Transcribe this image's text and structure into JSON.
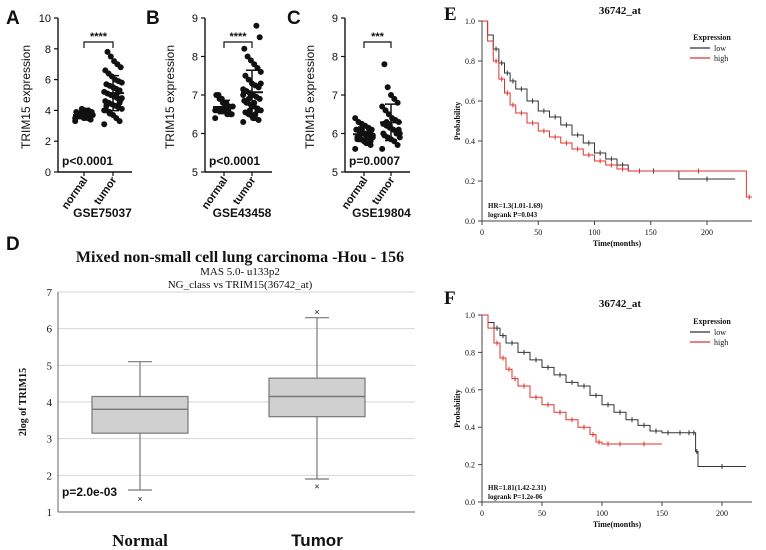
{
  "chart_data": [
    {
      "panel": "A",
      "type": "scatter",
      "title": "GSE75037",
      "ylabel": "TRIM15 expression",
      "categories": [
        "normal",
        "tumor"
      ],
      "ylim": [
        0,
        10
      ],
      "yticks": [
        0,
        2,
        4,
        6,
        8,
        10
      ],
      "significance": "****",
      "pvalue_text": "p<0.0001",
      "series": [
        {
          "values": [
            3.3,
            3.4,
            3.5,
            3.5,
            3.6,
            3.6,
            3.7,
            3.7,
            3.7,
            3.8,
            3.8,
            3.9,
            3.9,
            4.0,
            4.0,
            4.1,
            3.6,
            3.5,
            3.7,
            3.8
          ]
        },
        {
          "values": [
            3.1,
            3.3,
            3.5,
            3.7,
            3.9,
            4.0,
            4.1,
            4.2,
            4.3,
            4.4,
            4.5,
            4.6,
            4.7,
            4.8,
            4.9,
            5.0,
            5.1,
            5.2,
            5.3,
            5.4,
            5.5,
            5.6,
            5.7,
            5.8,
            5.9,
            6.0,
            6.2,
            6.4,
            6.6,
            6.8,
            7.0,
            7.2,
            7.5,
            7.8,
            4.0,
            4.5,
            5.0,
            5.5,
            3.8,
            4.3,
            4.8,
            5.2
          ]
        }
      ]
    },
    {
      "panel": "B",
      "type": "scatter",
      "title": "GSE43458",
      "ylabel": "TRIM15 expression",
      "categories": [
        "normal",
        "tumor"
      ],
      "ylim": [
        5,
        9
      ],
      "yticks": [
        5,
        6,
        7,
        8,
        9
      ],
      "significance": "****",
      "pvalue_text": "p<0.0001",
      "series": [
        {
          "values": [
            6.4,
            6.5,
            6.5,
            6.6,
            6.6,
            6.6,
            6.7,
            6.7,
            6.8,
            6.8,
            6.9,
            7.0,
            6.5,
            6.6,
            6.7,
            6.9,
            7.0,
            6.6
          ]
        },
        {
          "values": [
            6.3,
            6.35,
            6.4,
            6.45,
            6.5,
            6.55,
            6.6,
            6.65,
            6.7,
            6.75,
            6.8,
            6.85,
            6.9,
            6.95,
            7.0,
            7.05,
            7.1,
            7.15,
            7.2,
            7.25,
            7.3,
            7.4,
            7.5,
            7.6,
            7.7,
            7.8,
            7.9,
            8.0,
            8.2,
            8.5,
            8.8,
            6.4,
            6.6,
            6.8,
            7.0,
            7.2,
            6.5,
            6.7,
            6.9,
            7.1,
            7.3,
            6.6,
            6.8,
            7.0
          ]
        }
      ]
    },
    {
      "panel": "C",
      "type": "scatter",
      "title": "GSE19804",
      "ylabel": "TRIM15 expression",
      "categories": [
        "normal",
        "tumor"
      ],
      "ylim": [
        5,
        9
      ],
      "yticks": [
        5,
        6,
        7,
        8,
        9
      ],
      "significance": "***",
      "pvalue_text": "p=0.0007",
      "series": [
        {
          "values": [
            5.6,
            5.7,
            5.75,
            5.8,
            5.85,
            5.9,
            5.9,
            5.95,
            6.0,
            6.0,
            6.05,
            6.1,
            6.1,
            6.15,
            6.2,
            6.25,
            6.3,
            6.4,
            5.8,
            5.9,
            6.0,
            6.1,
            5.85,
            5.95,
            6.05,
            5.75,
            6.2,
            5.9
          ]
        },
        {
          "values": [
            5.6,
            5.7,
            5.8,
            5.85,
            5.9,
            5.95,
            6.0,
            6.05,
            6.1,
            6.15,
            6.2,
            6.25,
            6.3,
            6.35,
            6.4,
            6.5,
            6.6,
            6.7,
            6.8,
            6.9,
            7.0,
            7.2,
            7.8,
            5.9,
            6.0,
            6.1,
            6.2,
            6.3,
            6.0,
            6.1
          ]
        }
      ]
    },
    {
      "panel": "D",
      "type": "box",
      "title": "Mixed non-small cell lung carcinoma -Hou - 156",
      "subtitle1": "MAS 5.0- u133p2",
      "subtitle2": "NG_class vs TRIM15(36742_at)",
      "ylabel": "2log of TRIM15",
      "categories": [
        "Normal",
        "Tumor"
      ],
      "ylim": [
        1,
        7
      ],
      "yticks": [
        1,
        2,
        3,
        4,
        5,
        6,
        7
      ],
      "pvalue_text": "p=2.0e-03",
      "boxes": [
        {
          "min": 1.6,
          "q1": 3.15,
          "median": 3.8,
          "q3": 4.15,
          "max": 5.1,
          "outliers": [
            1.35
          ]
        },
        {
          "min": 1.9,
          "q1": 3.6,
          "median": 4.15,
          "q3": 4.65,
          "max": 6.3,
          "outliers": [
            6.45,
            1.7
          ]
        }
      ]
    },
    {
      "panel": "E",
      "type": "line",
      "title": "36742_at",
      "xlabel": "Time(months)",
      "ylabel": "Probability",
      "xlim": [
        0,
        240
      ],
      "ylim": [
        0,
        1
      ],
      "xticks": [
        0,
        50,
        100,
        150,
        200
      ],
      "yticks": [
        0.0,
        0.2,
        0.4,
        0.6,
        0.8,
        1.0
      ],
      "legend_title": "Expression",
      "stat_hr": "HR=1.3(1.01-1.69)",
      "stat_logrank": "logrank P=0.043",
      "series": [
        {
          "name": "low",
          "color": "#333333",
          "x": [
            0,
            5,
            10,
            15,
            20,
            25,
            30,
            40,
            50,
            60,
            70,
            80,
            90,
            100,
            110,
            120,
            130,
            175,
            225
          ],
          "y": [
            1.0,
            0.93,
            0.86,
            0.79,
            0.74,
            0.7,
            0.66,
            0.6,
            0.55,
            0.52,
            0.48,
            0.43,
            0.39,
            0.34,
            0.31,
            0.28,
            0.25,
            0.21,
            0.21
          ]
        },
        {
          "name": "high",
          "color": "#e03030",
          "x": [
            0,
            5,
            10,
            15,
            20,
            25,
            30,
            40,
            50,
            60,
            70,
            80,
            90,
            100,
            110,
            120,
            130,
            150,
            235,
            240
          ],
          "y": [
            1.0,
            0.9,
            0.8,
            0.71,
            0.64,
            0.58,
            0.54,
            0.49,
            0.45,
            0.42,
            0.39,
            0.36,
            0.33,
            0.3,
            0.28,
            0.26,
            0.25,
            0.25,
            0.12,
            0.12
          ]
        }
      ]
    },
    {
      "panel": "F",
      "type": "line",
      "title": "36742_at",
      "xlabel": "Time(months)",
      "ylabel": "Probability",
      "xlim": [
        0,
        225
      ],
      "ylim": [
        0,
        1
      ],
      "xticks": [
        0,
        50,
        100,
        150,
        200
      ],
      "yticks": [
        0.0,
        0.2,
        0.4,
        0.6,
        0.8,
        1.0
      ],
      "legend_title": "Expression",
      "stat_hr": "HR=1.81(1.42-2.31)",
      "stat_logrank": "logrank P=1.2e-06",
      "series": [
        {
          "name": "low",
          "color": "#333333",
          "x": [
            0,
            5,
            10,
            15,
            20,
            30,
            40,
            50,
            60,
            70,
            80,
            90,
            100,
            110,
            120,
            130,
            140,
            150,
            160,
            170,
            175,
            178,
            180,
            220
          ],
          "y": [
            1.0,
            0.96,
            0.93,
            0.89,
            0.85,
            0.8,
            0.76,
            0.72,
            0.68,
            0.64,
            0.62,
            0.57,
            0.52,
            0.48,
            0.44,
            0.41,
            0.38,
            0.37,
            0.37,
            0.37,
            0.37,
            0.27,
            0.19,
            0.19
          ]
        },
        {
          "name": "high",
          "color": "#e03030",
          "x": [
            0,
            5,
            10,
            15,
            20,
            25,
            30,
            40,
            50,
            60,
            70,
            80,
            90,
            95,
            100,
            110,
            120,
            150
          ],
          "y": [
            1.0,
            0.93,
            0.85,
            0.77,
            0.71,
            0.66,
            0.62,
            0.56,
            0.52,
            0.48,
            0.44,
            0.4,
            0.36,
            0.32,
            0.31,
            0.31,
            0.31,
            0.31
          ]
        }
      ]
    }
  ]
}
